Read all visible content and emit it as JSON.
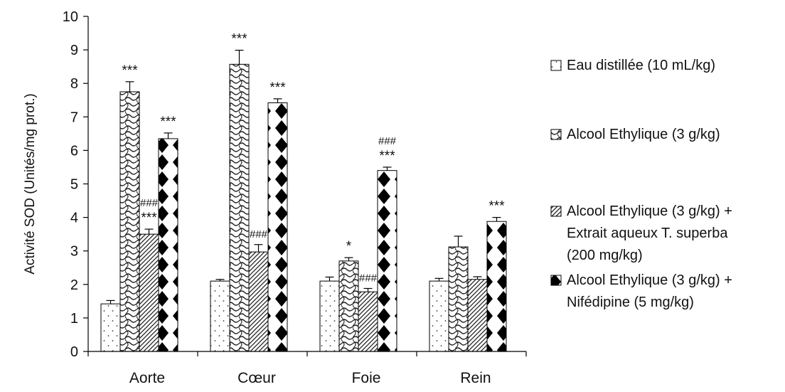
{
  "chart_data": {
    "type": "bar",
    "title": "",
    "xlabel": "",
    "ylabel": "Activité SOD (Unités/mg prot.)",
    "ylim": [
      0,
      10
    ],
    "yticks": [
      0,
      1,
      2,
      3,
      4,
      5,
      6,
      7,
      8,
      9,
      10
    ],
    "categories": [
      "Aorte",
      "Cœur",
      "Foie",
      "Rein"
    ],
    "legend_position": "right",
    "series": [
      {
        "name": "Eau  distillée (10 mL/kg)",
        "pattern": "dots",
        "values": [
          1.42,
          2.1,
          2.1,
          2.1
        ],
        "errors": [
          0.1,
          0.05,
          0.12,
          0.08
        ],
        "annotations": [
          "",
          "",
          "",
          ""
        ]
      },
      {
        "name": "Alcool Ethylique (3 g/kg)",
        "pattern": "waves",
        "values": [
          7.75,
          8.57,
          2.7,
          3.12
        ],
        "errors": [
          0.3,
          0.42,
          0.1,
          0.32
        ],
        "annotations": [
          "***",
          "***",
          "*",
          ""
        ]
      },
      {
        "name": "Alcool Ethylique (3 g/kg) + Extrait aqueux T. superba (200 mg/kg)",
        "pattern": "diagonal",
        "values": [
          3.5,
          2.97,
          1.78,
          2.15
        ],
        "errors": [
          0.15,
          0.22,
          0.1,
          0.08
        ],
        "annotations": [
          "###\n***",
          "###",
          "###",
          ""
        ]
      },
      {
        "name": "Alcool Ethylique (3 g/kg) + Nifédipine (5 mg/kg)",
        "pattern": "diamonds",
        "values": [
          6.35,
          7.42,
          5.4,
          3.88
        ],
        "errors": [
          0.17,
          0.12,
          0.1,
          0.12
        ],
        "annotations": [
          "***",
          "***",
          "###\n***",
          "***"
        ]
      }
    ]
  }
}
